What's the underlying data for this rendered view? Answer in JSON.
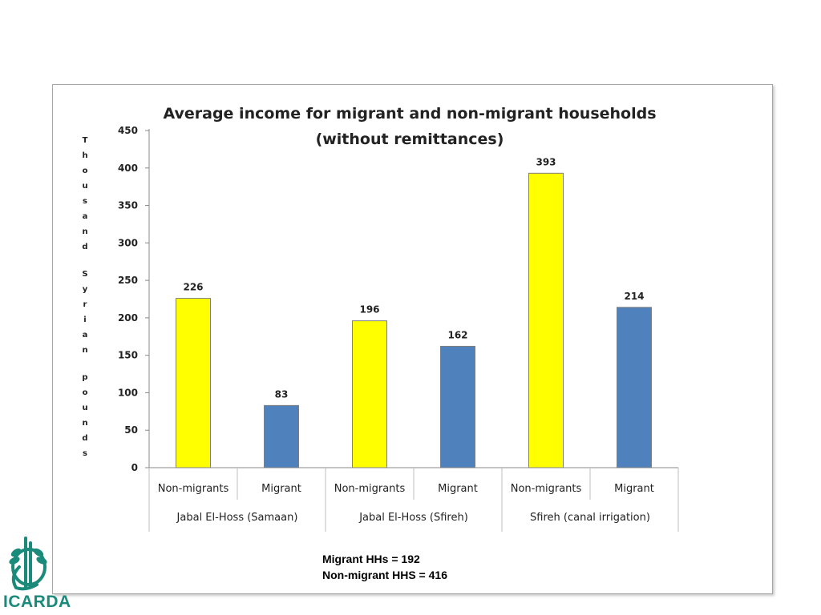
{
  "chart_data": {
    "type": "bar",
    "title": "Average income for migrant and non-migrant households",
    "subtitle": "(without remittances)",
    "ylabel": "Thousand Syrian pounds",
    "ylim": [
      0,
      450
    ],
    "yticks": [
      0,
      50,
      100,
      150,
      200,
      250,
      300,
      350,
      400,
      450
    ],
    "grid": false,
    "legend": "none",
    "categories": [
      "Non-migrants",
      "Migrant",
      "Non-migrants",
      "Migrant",
      "Non-migrants",
      "Migrant"
    ],
    "groups": [
      "Jabal El-Hoss (Samaan)",
      "Jabal El-Hoss (Sfireh)",
      "Sfireh (canal irrigation)"
    ],
    "values": [
      226,
      83,
      196,
      162,
      393,
      214
    ],
    "colors": [
      "#ffff00",
      "#4f81bd",
      "#ffff00",
      "#4f81bd",
      "#ffff00",
      "#4f81bd"
    ]
  },
  "notes": {
    "migrant": "Migrant HHs = 192",
    "non_migrant": "Non-migrant HHS = 416"
  },
  "logo": {
    "text": "ICARDA",
    "color": "#1a8a7a"
  }
}
